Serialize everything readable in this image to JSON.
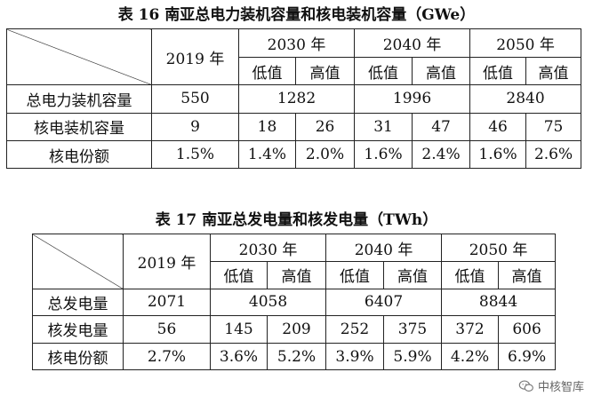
{
  "table1": {
    "caption": "表 16 南亚总电力装机容量和核电装机容量（GWe）",
    "year_base": "2019 年",
    "year_groups": [
      "2030 年",
      "2040 年",
      "2050 年"
    ],
    "sub_headers": [
      "低值",
      "高值",
      "低值",
      "高值",
      "低值",
      "高值"
    ],
    "rows": [
      {
        "label": "总电力装机容量",
        "base": "550",
        "merged": [
          "1282",
          "1996",
          "2840"
        ]
      },
      {
        "label": "核电装机容量",
        "base": "9",
        "cells": [
          "18",
          "26",
          "31",
          "47",
          "46",
          "75"
        ]
      },
      {
        "label": "核电份额",
        "base": "1.5%",
        "cells": [
          "1.4%",
          "2.0%",
          "1.6%",
          "2.4%",
          "1.6%",
          "2.6%"
        ]
      }
    ]
  },
  "table2": {
    "caption": "表 17 南亚总发电量和核发电量（TWh）",
    "year_base": "2019 年",
    "year_groups": [
      "2030 年",
      "2040 年",
      "2050 年"
    ],
    "sub_headers": [
      "低值",
      "高值",
      "低值",
      "高值",
      "低值",
      "高值"
    ],
    "rows": [
      {
        "label": "总发电量",
        "base": "2071",
        "merged": [
          "4058",
          "6407",
          "8844"
        ]
      },
      {
        "label": "核发电量",
        "base": "56",
        "cells": [
          "145",
          "209",
          "252",
          "375",
          "372",
          "606"
        ]
      },
      {
        "label": "核电份额",
        "base": "2.7%",
        "cells": [
          "3.6%",
          "5.2%",
          "3.9%",
          "5.9%",
          "4.2%",
          "6.9%"
        ]
      }
    ]
  },
  "watermark": {
    "text": "中核智库",
    "icon": "wechat-icon"
  }
}
